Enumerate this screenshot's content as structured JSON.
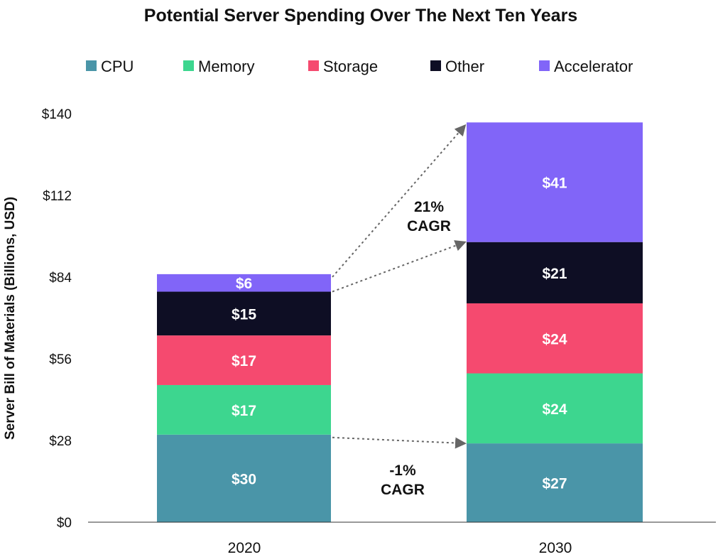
{
  "chart_data": {
    "type": "bar",
    "stacked": true,
    "title": "Potential Server Spending Over The Next Ten Years",
    "xlabel": "",
    "ylabel": "Server Bill of Materials (Billions, USD)",
    "categories": [
      "2020",
      "2030"
    ],
    "ylim": [
      0,
      140
    ],
    "yticks": [
      "$0",
      "$28",
      "$56",
      "$84",
      "$112",
      "$140"
    ],
    "ytick_values": [
      0,
      28,
      56,
      84,
      112,
      140
    ],
    "legend_position": "top",
    "grid": false,
    "series": [
      {
        "name": "CPU",
        "color": "#4a95a8",
        "values": [
          30,
          27
        ],
        "labels": [
          "$30",
          "$27"
        ]
      },
      {
        "name": "Memory",
        "color": "#3dd68f",
        "values": [
          17,
          24
        ],
        "labels": [
          "$17",
          "$24"
        ]
      },
      {
        "name": "Storage",
        "color": "#f54a6f",
        "values": [
          17,
          24
        ],
        "labels": [
          "$17",
          "$24"
        ]
      },
      {
        "name": "Other",
        "color": "#0e0e24",
        "values": [
          15,
          21
        ],
        "labels": [
          "$15",
          "$21"
        ]
      },
      {
        "name": "Accelerator",
        "color": "#8165f8",
        "values": [
          6,
          41
        ],
        "labels": [
          "$6",
          "$41"
        ]
      }
    ],
    "annotations": [
      {
        "lines": [
          "21%",
          "CAGR"
        ]
      },
      {
        "lines": [
          "-1%",
          "CAGR"
        ]
      }
    ]
  }
}
